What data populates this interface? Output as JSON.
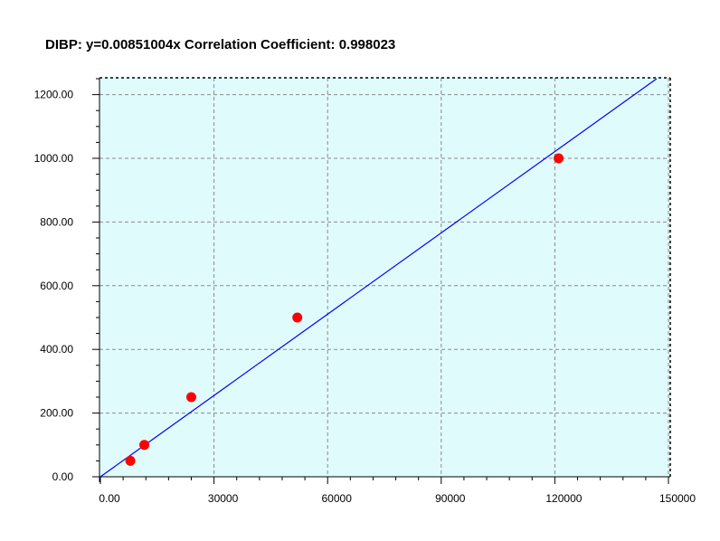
{
  "chart_data": {
    "type": "scatter",
    "title": "DIBP: y=0.00851004x Correlation Coefficient: 0.998023",
    "xlim": [
      0,
      150000
    ],
    "ylim": [
      0,
      1250
    ],
    "x_ticks": [
      0,
      30000,
      60000,
      90000,
      120000,
      150000
    ],
    "x_tick_labels": [
      "0.00",
      "30000",
      "60000",
      "90000",
      "120000",
      "150000"
    ],
    "y_ticks": [
      0,
      200,
      400,
      600,
      800,
      1000,
      1200
    ],
    "y_tick_labels": [
      "0.00",
      "200.00",
      "400.00",
      "600.00",
      "800.00",
      "1000.00",
      "1200.00"
    ],
    "grid": true,
    "plot_background": "#e0fbfb",
    "series": [
      {
        "type": "scatter",
        "color": "#ff0000",
        "points": [
          {
            "x": 7900,
            "y": 50
          },
          {
            "x": 11600,
            "y": 100
          },
          {
            "x": 24000,
            "y": 250
          },
          {
            "x": 52000,
            "y": 500
          },
          {
            "x": 121000,
            "y": 1000
          }
        ]
      },
      {
        "type": "line",
        "color": "#0000ff",
        "slope": 0.00851004,
        "intercept": 0
      }
    ]
  }
}
